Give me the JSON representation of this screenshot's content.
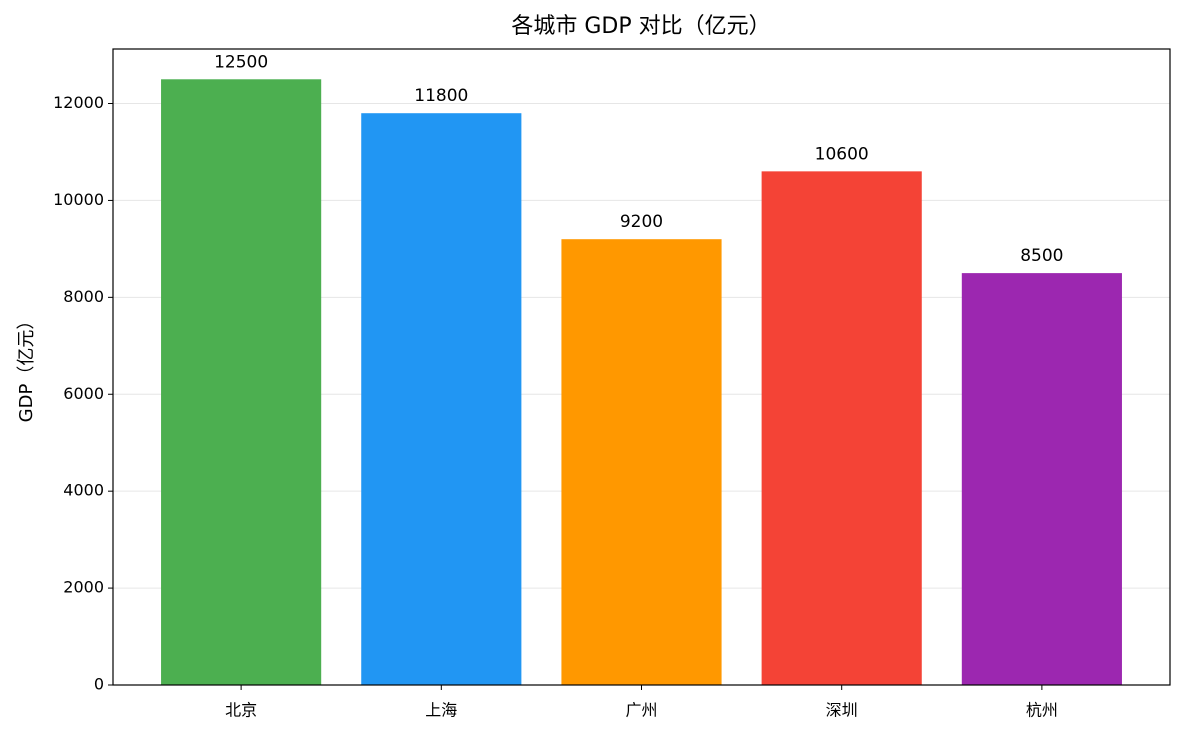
{
  "chart_data": {
    "type": "bar",
    "title": "各城市 GDP 对比（亿元）",
    "y_label": "GDP（亿元）",
    "categories": [
      "北京",
      "上海",
      "广州",
      "深圳",
      "杭州"
    ],
    "values": [
      12500,
      11800,
      9200,
      10600,
      8500
    ],
    "colors": [
      "#4caf50",
      "#2196f3",
      "#ff9800",
      "#f44336",
      "#9c27b0"
    ],
    "ylim": [
      0,
      13125
    ],
    "yticks": [
      0,
      2000,
      4000,
      6000,
      8000,
      10000,
      12000
    ],
    "grid": true
  }
}
